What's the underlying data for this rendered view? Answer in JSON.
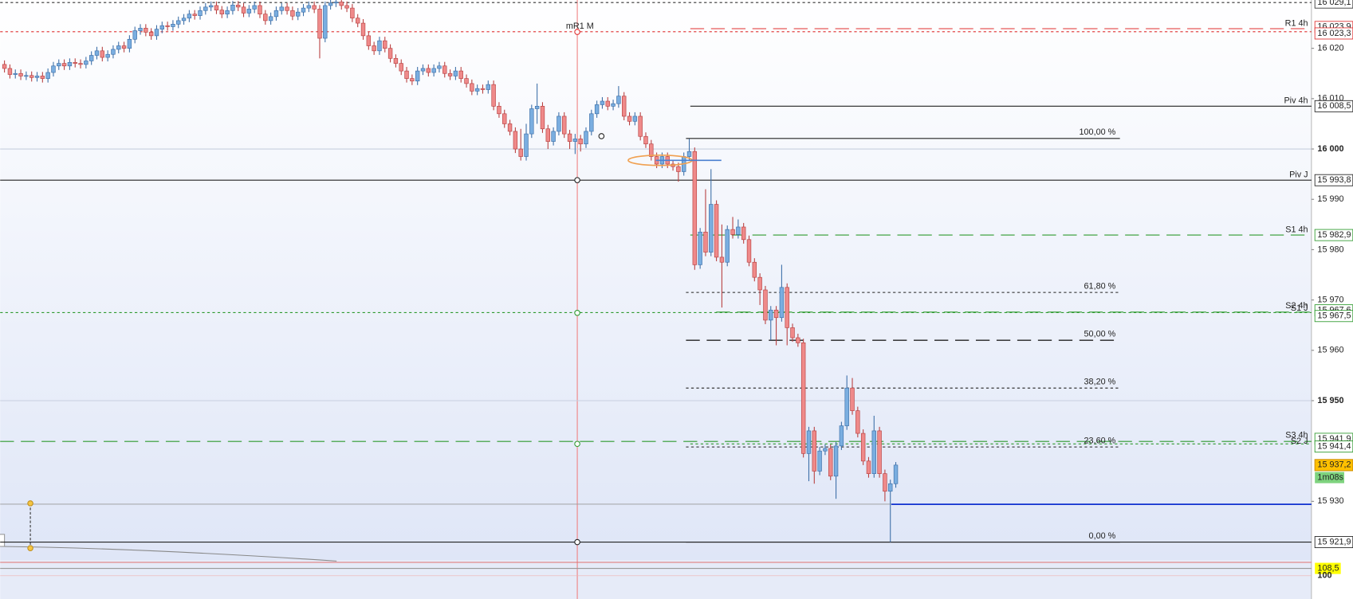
{
  "chart_data": {
    "type": "candlestick",
    "ylim": [
      15918.3,
      16029.6
    ],
    "yticks": [
      {
        "value": 16020,
        "label": "16 020"
      },
      {
        "value": 16010,
        "label": "16 010"
      },
      {
        "value": 16000,
        "label": "16 000"
      },
      {
        "value": 15990,
        "label": "15 990"
      },
      {
        "value": 15980,
        "label": "15 980"
      },
      {
        "value": 15970,
        "label": "15 970"
      },
      {
        "value": 15960,
        "label": "15 960"
      },
      {
        "value": 15950,
        "label": "15 950"
      },
      {
        "value": 15930,
        "label": "15 930"
      }
    ],
    "up_color": "#7aaee0",
    "down_color": "#ef8a8a",
    "candles": [
      [
        16016.8,
        16017.6,
        16015.2,
        16016.0
      ],
      [
        16016.0,
        16016.8,
        16014.0,
        16014.8
      ],
      [
        16014.8,
        16015.8,
        16014.0,
        16015.0
      ],
      [
        16015.0,
        16015.8,
        16013.7,
        16014.5
      ],
      [
        16014.5,
        16015.4,
        16013.7,
        16014.6
      ],
      [
        16014.6,
        16015.4,
        16013.4,
        16014.2
      ],
      [
        16014.2,
        16015.3,
        16013.4,
        16014.5
      ],
      [
        16014.5,
        16015.3,
        16013.2,
        16014.0
      ],
      [
        16014.0,
        16016.0,
        16013.2,
        16015.2
      ],
      [
        16015.2,
        16017.3,
        16014.4,
        16016.5
      ],
      [
        16016.5,
        16017.8,
        16015.7,
        16017.0
      ],
      [
        16017.0,
        16017.8,
        16015.7,
        16016.5
      ],
      [
        16016.5,
        16018.0,
        16015.7,
        16017.2
      ],
      [
        16017.2,
        16018.0,
        16016.2,
        16017.0
      ],
      [
        16017.0,
        16017.8,
        16016.0,
        16016.8
      ],
      [
        16016.8,
        16018.3,
        16016.0,
        16017.5
      ],
      [
        16017.5,
        16019.4,
        16016.7,
        16018.6
      ],
      [
        16018.6,
        16020.3,
        16017.8,
        16019.5
      ],
      [
        16019.5,
        16020.3,
        16017.4,
        16018.2
      ],
      [
        16018.2,
        16019.6,
        16017.4,
        16018.8
      ],
      [
        16018.8,
        16020.6,
        16018.0,
        16019.8
      ],
      [
        16019.8,
        16021.3,
        16019.0,
        16020.5
      ],
      [
        16020.5,
        16021.3,
        16019.2,
        16020.0
      ],
      [
        16020.0,
        16022.6,
        16019.2,
        16021.8
      ],
      [
        16021.8,
        16024.3,
        16021.0,
        16023.5
      ],
      [
        16023.5,
        16024.8,
        16022.7,
        16024.0
      ],
      [
        16024.0,
        16024.8,
        16022.4,
        16023.2
      ],
      [
        16023.2,
        16024.0,
        16021.7,
        16022.5
      ],
      [
        16022.5,
        16024.6,
        16021.7,
        16023.8
      ],
      [
        16023.8,
        16025.3,
        16023.0,
        16024.5
      ],
      [
        16024.5,
        16025.3,
        16023.5,
        16024.3
      ],
      [
        16024.3,
        16025.6,
        16023.5,
        16024.8
      ],
      [
        16024.8,
        16026.3,
        16024.0,
        16025.5
      ],
      [
        16025.5,
        16026.8,
        16024.7,
        16026.0
      ],
      [
        16026.0,
        16027.6,
        16025.2,
        16026.8
      ],
      [
        16026.8,
        16027.6,
        16025.7,
        16026.5
      ],
      [
        16026.5,
        16028.3,
        16025.7,
        16027.5
      ],
      [
        16027.5,
        16029.0,
        16026.7,
        16028.2
      ],
      [
        16028.2,
        16029.3,
        16027.4,
        16028.5
      ],
      [
        16028.5,
        16029.3,
        16026.8,
        16027.6
      ],
      [
        16027.6,
        16028.4,
        16026.0,
        16026.8
      ],
      [
        16026.8,
        16028.3,
        16026.0,
        16027.5
      ],
      [
        16027.5,
        16029.4,
        16026.7,
        16028.6
      ],
      [
        16028.6,
        16029.4,
        16027.4,
        16028.2
      ],
      [
        16028.2,
        16029.0,
        16026.2,
        16027.0
      ],
      [
        16027.0,
        16028.6,
        16026.2,
        16027.8
      ],
      [
        16027.8,
        16029.3,
        16027.0,
        16028.5
      ],
      [
        16028.5,
        16029.3,
        16026.0,
        16026.8
      ],
      [
        16026.8,
        16027.6,
        16024.7,
        16025.5
      ],
      [
        16025.5,
        16027.1,
        16024.7,
        16026.3
      ],
      [
        16026.3,
        16028.3,
        16025.5,
        16027.5
      ],
      [
        16027.5,
        16029.0,
        16026.7,
        16028.2
      ],
      [
        16028.2,
        16029.0,
        16026.7,
        16027.5
      ],
      [
        16027.5,
        16028.3,
        16025.6,
        16026.4
      ],
      [
        16026.4,
        16028.0,
        16025.6,
        16027.2
      ],
      [
        16027.2,
        16028.8,
        16026.4,
        16028.0
      ],
      [
        16028.0,
        16029.3,
        16027.2,
        16028.5
      ],
      [
        16028.5,
        16029.3,
        16027.0,
        16027.8
      ],
      [
        16027.8,
        16028.6,
        16018.0,
        16022.0
      ],
      [
        16022.0,
        16029.3,
        16021.2,
        16028.5
      ],
      [
        16028.5,
        16030.0,
        16027.7,
        16029.0
      ],
      [
        16029.0,
        16030.0,
        16028.2,
        16029.2
      ],
      [
        16029.2,
        16030.0,
        16027.7,
        16028.5
      ],
      [
        16028.5,
        16029.3,
        16027.2,
        16028.0
      ],
      [
        16028.0,
        16028.8,
        16025.2,
        16026.0
      ],
      [
        16026.0,
        16026.8,
        16024.2,
        16025.0
      ],
      [
        16025.0,
        16025.8,
        16021.7,
        16022.5
      ],
      [
        16022.5,
        16023.3,
        16019.7,
        16020.5
      ],
      [
        16020.5,
        16021.3,
        16018.7,
        16019.5
      ],
      [
        16019.5,
        16022.3,
        16018.7,
        16021.5
      ],
      [
        16021.5,
        16022.3,
        16019.2,
        16020.0
      ],
      [
        16020.0,
        16020.8,
        16017.2,
        16018.0
      ],
      [
        16018.0,
        16018.8,
        16016.2,
        16017.0
      ],
      [
        16017.0,
        16017.8,
        16014.7,
        16015.5
      ],
      [
        16015.5,
        16016.3,
        16013.2,
        16014.0
      ],
      [
        16014.0,
        16014.8,
        16012.7,
        16013.5
      ],
      [
        16013.5,
        16016.3,
        16012.7,
        16015.5
      ],
      [
        16015.5,
        16016.8,
        16014.7,
        16016.0
      ],
      [
        16016.0,
        16016.8,
        16014.4,
        16015.2
      ],
      [
        16015.2,
        16016.8,
        16014.4,
        16016.0
      ],
      [
        16016.0,
        16017.3,
        16015.2,
        16016.5
      ],
      [
        16016.5,
        16017.3,
        16014.2,
        16015.0
      ],
      [
        16015.0,
        16015.8,
        16013.7,
        16014.5
      ],
      [
        16014.5,
        16016.3,
        16013.7,
        16015.5
      ],
      [
        16015.5,
        16016.3,
        16013.2,
        16014.0
      ],
      [
        16014.0,
        16014.8,
        16012.2,
        16013.0
      ],
      [
        16013.0,
        16013.8,
        16010.7,
        16011.5
      ],
      [
        16011.5,
        16012.8,
        16010.7,
        16012.0
      ],
      [
        16012.0,
        16012.8,
        16011.0,
        16011.8
      ],
      [
        16011.8,
        16013.6,
        16011.0,
        16012.8
      ],
      [
        16012.8,
        16013.6,
        16007.7,
        16008.5
      ],
      [
        16008.5,
        16009.3,
        16006.2,
        16007.0
      ],
      [
        16007.0,
        16007.8,
        16004.2,
        16005.0
      ],
      [
        16005.0,
        16005.8,
        16002.7,
        16003.5
      ],
      [
        16003.5,
        16004.3,
        15999.2,
        16000.0
      ],
      [
        16000.0,
        16004.0,
        15997.7,
        15998.5
      ],
      [
        15998.5,
        16005.0,
        15997.7,
        16003.0
      ],
      [
        16003.0,
        16008.8,
        16002.2,
        16008.0
      ],
      [
        16008.0,
        16013.0,
        16005.0,
        16008.5
      ],
      [
        16008.5,
        16009.3,
        16003.2,
        16004.0
      ],
      [
        16004.0,
        16004.8,
        16000.0,
        16001.5
      ],
      [
        16001.5,
        16004.3,
        16000.7,
        16003.5
      ],
      [
        16003.5,
        16007.3,
        16002.7,
        16006.5
      ],
      [
        16006.5,
        16007.3,
        16002.2,
        16003.0
      ],
      [
        16003.0,
        16003.8,
        16000.0,
        16001.5
      ],
      [
        16001.5,
        16003.0,
        15999.0,
        16002.0
      ],
      [
        16002.0,
        16002.8,
        15999.5,
        16001.0
      ],
      [
        16001.0,
        16004.3,
        16000.2,
        16003.5
      ],
      [
        16003.5,
        16007.8,
        16002.7,
        16007.0
      ],
      [
        16007.0,
        16009.6,
        16006.2,
        16008.8
      ],
      [
        16008.8,
        16010.3,
        16008.0,
        16009.5
      ],
      [
        16009.5,
        16010.3,
        16007.7,
        16008.5
      ],
      [
        16008.5,
        16009.8,
        16007.7,
        16009.0
      ],
      [
        16009.0,
        16012.5,
        16008.2,
        16010.5
      ],
      [
        16010.5,
        16011.3,
        16005.7,
        16006.5
      ],
      [
        16006.5,
        16007.3,
        16004.7,
        16005.5
      ],
      [
        16005.5,
        16007.3,
        16004.7,
        16006.5
      ],
      [
        16006.5,
        16007.3,
        16001.7,
        16002.5
      ],
      [
        16002.5,
        16003.3,
        16000.2,
        16001.0
      ],
      [
        16001.0,
        16001.8,
        15997.7,
        15998.5
      ],
      [
        15998.5,
        15999.3,
        15996.2,
        15997.0
      ],
      [
        15997.0,
        15999.3,
        15996.2,
        15998.5
      ],
      [
        15998.5,
        15999.3,
        15996.2,
        15997.0
      ],
      [
        15997.0,
        15997.8,
        15995.7,
        15996.5
      ],
      [
        15996.5,
        15997.3,
        15993.5,
        15995.5
      ],
      [
        15995.5,
        15999.3,
        15994.7,
        15998.5
      ],
      [
        15998.5,
        16002.0,
        15997.7,
        15999.5
      ],
      [
        15999.5,
        16000.3,
        15976.0,
        15977.0
      ],
      [
        15977.0,
        15984.3,
        15976.2,
        15983.5
      ],
      [
        15983.5,
        15992.0,
        15978.7,
        15979.5
      ],
      [
        15979.5,
        15996.0,
        15978.7,
        15989.0
      ],
      [
        15989.0,
        15989.8,
        15977.7,
        15978.5
      ],
      [
        15978.5,
        15985.0,
        15968.5,
        15977.5
      ],
      [
        15977.5,
        15984.8,
        15976.7,
        15984.0
      ],
      [
        15984.0,
        15986.5,
        15982.2,
        15983.0
      ],
      [
        15983.0,
        15986.0,
        15982.2,
        15984.5
      ],
      [
        15984.5,
        15985.3,
        15981.2,
        15982.0
      ],
      [
        15982.0,
        15982.8,
        15976.7,
        15977.5
      ],
      [
        15977.5,
        15978.3,
        15973.7,
        15974.5
      ],
      [
        15974.5,
        15975.3,
        15969.0,
        15972.0
      ],
      [
        15972.0,
        15972.8,
        15965.2,
        15966.0
      ],
      [
        15966.0,
        15968.8,
        15962.0,
        15968.0
      ],
      [
        15968.0,
        15968.8,
        15961.0,
        15966.5
      ],
      [
        15966.5,
        15977.0,
        15965.7,
        15972.5
      ],
      [
        15972.5,
        15973.3,
        15961.0,
        15964.5
      ],
      [
        15964.5,
        15965.3,
        15961.7,
        15962.5
      ],
      [
        15962.5,
        15963.3,
        15960.7,
        15961.5
      ],
      [
        15961.5,
        15962.3,
        15938.7,
        15939.5
      ],
      [
        15939.5,
        15944.8,
        15934.0,
        15944.0
      ],
      [
        15944.0,
        15944.8,
        15933.5,
        15936.0
      ],
      [
        15936.0,
        15940.8,
        15935.2,
        15940.0
      ],
      [
        15940.0,
        15941.3,
        15939.2,
        15940.5
      ],
      [
        15940.5,
        15941.3,
        15934.2,
        15935.0
      ],
      [
        15935.0,
        15941.8,
        15930.5,
        15941.0
      ],
      [
        15941.0,
        15945.8,
        15940.2,
        15945.0
      ],
      [
        15945.0,
        15955.0,
        15944.2,
        15952.5
      ],
      [
        15952.5,
        15954.5,
        15947.2,
        15948.0
      ],
      [
        15948.0,
        15948.8,
        15942.7,
        15943.5
      ],
      [
        15943.5,
        15944.3,
        15937.2,
        15938.0
      ],
      [
        15938.0,
        15938.8,
        15934.7,
        15935.5
      ],
      [
        15935.5,
        15947.0,
        15934.7,
        15944.0
      ],
      [
        15944.0,
        15944.8,
        15934.7,
        15935.5
      ],
      [
        15935.5,
        15936.3,
        15930.0,
        15932.0
      ],
      [
        15932.0,
        15934.3,
        15921.9,
        15933.5
      ],
      [
        15933.5,
        15937.8,
        15932.7,
        15937.2
      ]
    ],
    "levels": [
      {
        "price": 16029.1,
        "price_label": "16 029,1",
        "color": "#333333",
        "style": "dotted"
      },
      {
        "name": "R1 4h",
        "price": 16023.9,
        "price_label": "16 023,9",
        "color": "#e03030",
        "style": "dashed"
      },
      {
        "name": "mR1 M",
        "price": 16023.3,
        "price_label": "16 023,3",
        "color": "#e03030",
        "style": "dotted"
      },
      {
        "name": "Piv 4h",
        "price": 16008.5,
        "price_label": "16 008,5",
        "color": "#222222",
        "style": "solid"
      },
      {
        "name": "Piv J",
        "price": 15993.8,
        "price_label": "15 993,8",
        "color": "#222222",
        "style": "solid"
      },
      {
        "name": "S1 4h",
        "price": 15982.9,
        "price_label": "15 982,9",
        "color": "#2e9a2e",
        "style": "dashed"
      },
      {
        "name": "S2 4h",
        "price": 15967.6,
        "price_label": "15 967,6",
        "color": "#2e9a2e",
        "style": "dashed"
      },
      {
        "name": "S1 J",
        "price": 15967.5,
        "price_label": "15 967,5",
        "color": "#2e9a2e",
        "style": "dotted"
      },
      {
        "name": "S3 4h",
        "price": 15941.9,
        "price_label": "15 941,9",
        "color": "#2e9a2e",
        "style": "dashed"
      },
      {
        "name": "S2 J",
        "price": 15941.4,
        "price_label": "15 941,4",
        "color": "#2e9a2e",
        "style": "dotted"
      },
      {
        "price": 15929.4,
        "color": "#1030d0",
        "style": "solid"
      },
      {
        "price": 15921.9,
        "price_label": "15 921,9",
        "color": "#222222",
        "style": "solid"
      }
    ],
    "fibonacci": [
      {
        "label": "100,00 %",
        "price": 16002.1,
        "style": "solid"
      },
      {
        "label": "61,80 %",
        "price": 15971.5,
        "style": "dotted"
      },
      {
        "label": "50,00 %",
        "price": 15962.0,
        "style": "dashed"
      },
      {
        "label": "38,20 %",
        "price": 15952.5,
        "style": "dotted"
      },
      {
        "label": "23,60 %",
        "price": 15940.8,
        "style": "dotted"
      },
      {
        "label": "0,00 %",
        "price": 15921.9,
        "style": "solid"
      }
    ],
    "last_price": {
      "value": 15937.2,
      "label": "15 937,2",
      "timer": "1m08s"
    },
    "indicator": {
      "value": 108.5,
      "label": "108,5",
      "ylim": [
        73,
        118
      ],
      "yticks": [
        100
      ]
    }
  }
}
